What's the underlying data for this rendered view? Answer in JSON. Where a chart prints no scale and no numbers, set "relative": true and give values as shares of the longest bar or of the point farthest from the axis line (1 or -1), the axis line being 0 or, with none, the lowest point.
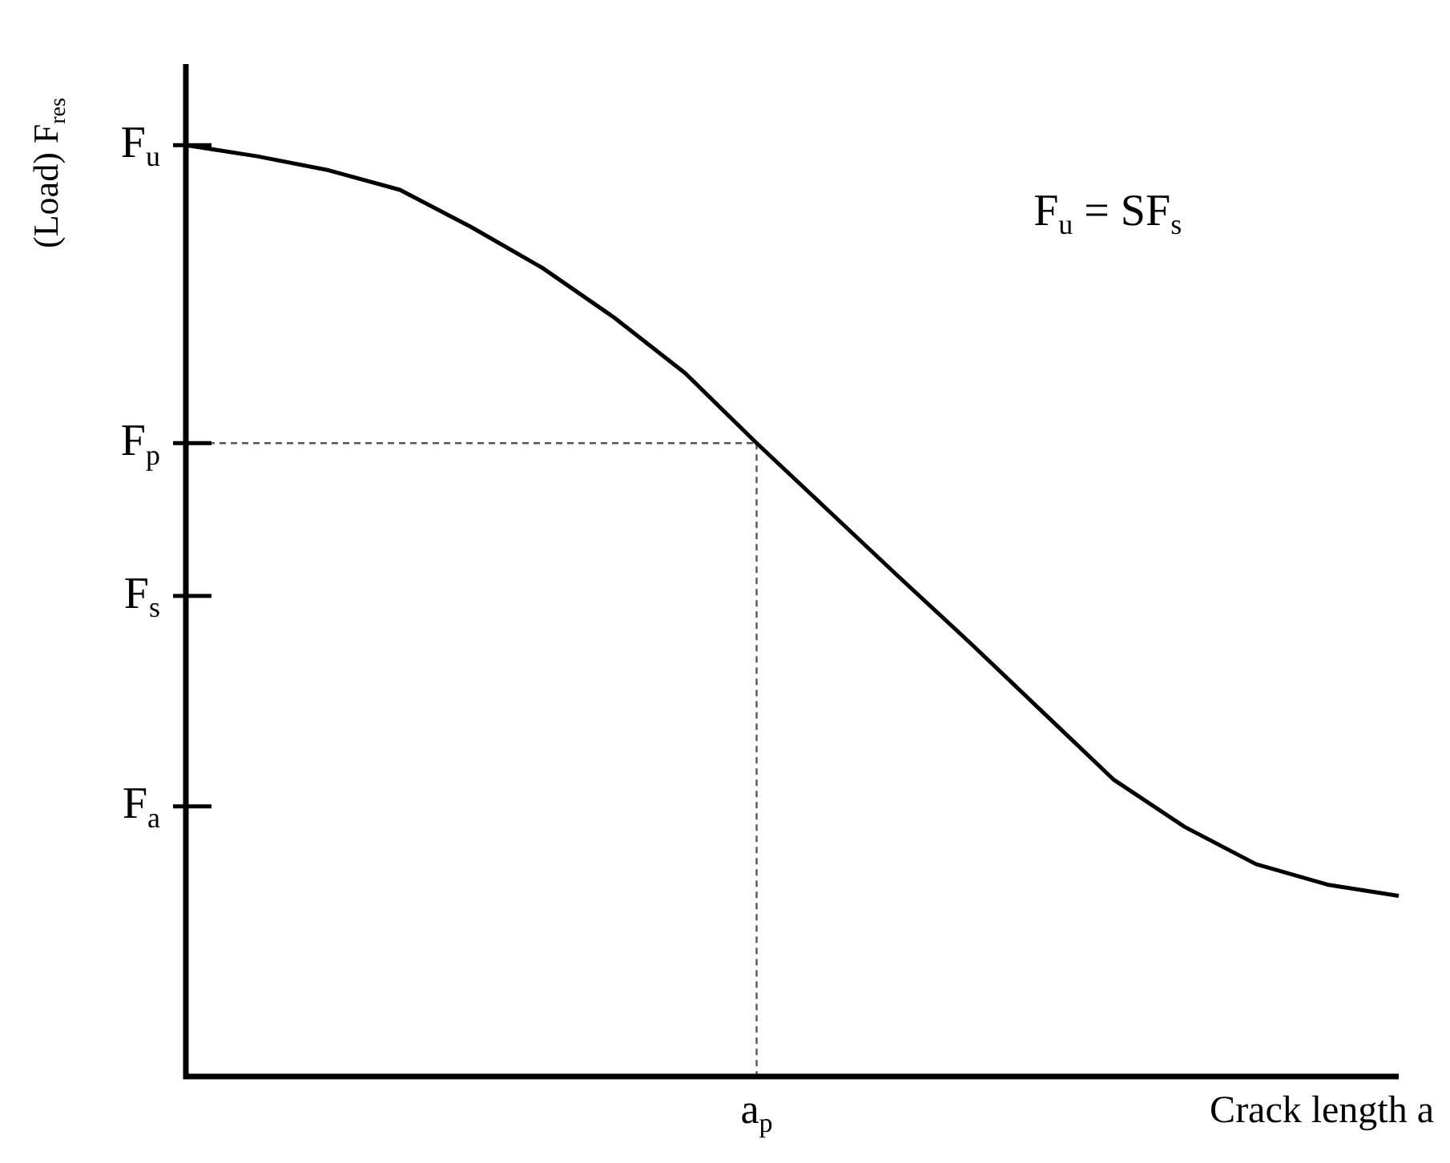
{
  "chart_data": {
    "type": "line",
    "relative": true,
    "xlabel": "Crack length a",
    "ylabel": "(Load) F$_{res}$",
    "categories": [
      null,
      null,
      null,
      null,
      null,
      null,
      null,
      null,
      null,
      null,
      null,
      null,
      null,
      null,
      null,
      null,
      null,
      null
    ],
    "series": [
      {
        "color": "#000000",
        "values": [
          1,
          0.988,
          0.973,
          0.952,
          0.912,
          0.868,
          0.815,
          0.755,
          0.68,
          0.608,
          0.536,
          0.465,
          0.392,
          0.319,
          0.268,
          0.228,
          0.206,
          0.194
        ]
      }
    ],
    "ref_lines": [
      {
        "axis": "y",
        "value": 1,
        "label": "F$_{u}$"
      },
      {
        "axis": "y",
        "value": 0.68,
        "line_style": "dashed",
        "color": "#555555",
        "label": "F$_{p}$"
      },
      {
        "axis": "y",
        "value": 0.516,
        "label": "F$_{s}$"
      },
      {
        "axis": "y",
        "value": 0.29,
        "label": "F$_{a}$"
      }
    ],
    "annotations": [
      "F$_{u}$ = SF$_{s}$",
      "a$_{p}$"
    ],
    "legend": false,
    "marker": "none",
    "line_style": "solid"
  }
}
